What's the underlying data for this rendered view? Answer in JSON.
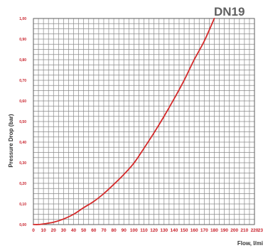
{
  "chart_data": {
    "type": "line",
    "title": "DN19",
    "xlabel": "Flow, l/mi",
    "ylabel": "Pressure Drop (bar)",
    "xlim": [
      0,
      220
    ],
    "ylim": [
      0,
      1.0
    ],
    "grid": true,
    "x_ticks": [
      "0",
      "10",
      "20",
      "30",
      "40",
      "50",
      "60",
      "70",
      "80",
      "90",
      "100",
      "110",
      "120",
      "130",
      "140",
      "150",
      "160",
      "170",
      "180",
      "190",
      "200",
      "210",
      "220",
      "23"
    ],
    "y_ticks": [
      "0,00",
      "0,10",
      "0,20",
      "0,30",
      "0,40",
      "0,50",
      "0,60",
      "0,70",
      "0,80",
      "0,90",
      "1,00"
    ],
    "series": [
      {
        "color": "#d42a2a",
        "x": [
          0,
          5,
          10,
          20,
          30,
          40,
          50,
          60,
          70,
          80,
          90,
          100,
          110,
          120,
          130,
          140,
          150,
          160,
          170,
          180
        ],
        "y": [
          0.0,
          0.0,
          0.003,
          0.011,
          0.027,
          0.05,
          0.082,
          0.112,
          0.15,
          0.195,
          0.243,
          0.298,
          0.37,
          0.445,
          0.525,
          0.61,
          0.7,
          0.8,
          0.89,
          1.0
        ]
      }
    ]
  }
}
